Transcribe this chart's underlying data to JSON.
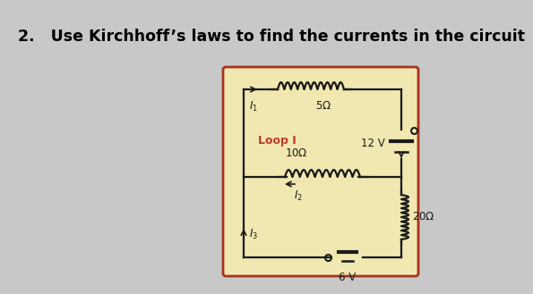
{
  "title": "2.   Use Kirchhoff’s laws to find the currents in the circuit",
  "bg_color": "#c8c8c8",
  "card_bg": "#f0e8b0",
  "card_border": "#a83220",
  "wire_color": "#1a1a1a",
  "label_color": "#1a1a1a",
  "loop_color": "#c0392b",
  "title_fontsize": 12.5,
  "label_fontsize": 8.5,
  "loop_fontsize": 9
}
